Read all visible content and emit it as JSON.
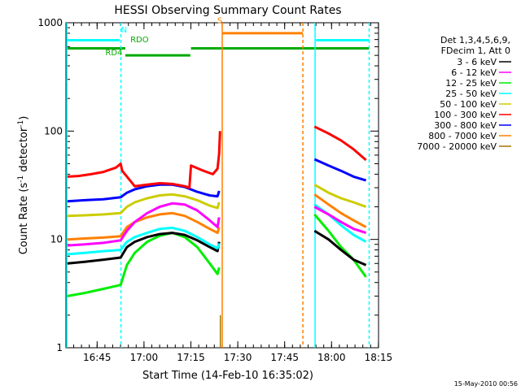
{
  "chart_data": {
    "type": "line",
    "title": "HESSI Observing Summary Count Rates",
    "xlabel": "Start Time (14-Feb-10 16:35:02)",
    "ylabel_base": "Count Rate (s",
    "ylabel_sup1": "-1",
    "ylabel_mid": " detector",
    "ylabel_sup2": "-1",
    "ylabel_end": ")",
    "yscale": "log",
    "ylim": [
      1,
      1000
    ],
    "xlim_minutes": [
      0,
      100
    ],
    "x_unit": "minutes after 16:35:02",
    "yticks": [
      {
        "value": 1,
        "label": "1"
      },
      {
        "value": 10,
        "label": "10"
      },
      {
        "value": 100,
        "label": "100"
      },
      {
        "value": 1000,
        "label": "1000"
      }
    ],
    "xticks": [
      {
        "value": 9.97,
        "label": "16:45"
      },
      {
        "value": 24.97,
        "label": "17:00"
      },
      {
        "value": 39.97,
        "label": "17:15"
      },
      {
        "value": 54.97,
        "label": "17:30"
      },
      {
        "value": 69.97,
        "label": "17:45"
      },
      {
        "value": 84.97,
        "label": "18:00"
      },
      {
        "value": 99.97,
        "label": "18:15"
      }
    ],
    "legend_header": [
      "Det 1,3,4,5,6,9,",
      "FDecim 1, Att 0"
    ],
    "legend_position": "right",
    "series": [
      {
        "name": "3 - 6 keV",
        "color": "#000000",
        "values": [
          [
            0.5,
            6.0
          ],
          [
            6,
            6.2
          ],
          [
            12,
            6.5
          ],
          [
            17.5,
            6.8
          ],
          [
            19.5,
            8.5
          ],
          [
            22,
            9.5
          ],
          [
            26,
            10.5
          ],
          [
            30,
            11.2
          ],
          [
            34,
            11.5
          ],
          [
            38,
            11.0
          ],
          [
            42,
            9.8
          ],
          [
            46,
            8.5
          ],
          [
            48.5,
            7.8
          ],
          [
            49,
            9.5
          ],
          [
            79.5,
            12.0
          ],
          [
            84,
            10.0
          ],
          [
            88,
            8.0
          ],
          [
            92,
            6.5
          ],
          [
            96,
            5.8
          ]
        ]
      },
      {
        "name": "6 - 12 keV",
        "color": "#ff00ff",
        "values": [
          [
            0.5,
            8.8
          ],
          [
            6,
            9.0
          ],
          [
            12,
            9.3
          ],
          [
            17.5,
            9.8
          ],
          [
            19.5,
            12.0
          ],
          [
            22,
            14.5
          ],
          [
            26,
            17.5
          ],
          [
            30,
            20.0
          ],
          [
            34,
            21.5
          ],
          [
            38,
            21.0
          ],
          [
            42,
            18.5
          ],
          [
            46,
            15.0
          ],
          [
            48.5,
            13.0
          ],
          [
            49,
            16.0
          ],
          [
            79.5,
            20.0
          ],
          [
            84,
            17.0
          ],
          [
            88,
            14.5
          ],
          [
            92,
            12.5
          ],
          [
            96,
            11.5
          ]
        ]
      },
      {
        "name": "12 - 25 keV",
        "color": "#00ee00",
        "values": [
          [
            0.5,
            3.0
          ],
          [
            6,
            3.2
          ],
          [
            12,
            3.5
          ],
          [
            17.5,
            3.8
          ],
          [
            19.5,
            5.8
          ],
          [
            22,
            7.5
          ],
          [
            26,
            9.5
          ],
          [
            30,
            10.8
          ],
          [
            34,
            11.5
          ],
          [
            38,
            10.5
          ],
          [
            42,
            8.5
          ],
          [
            46,
            6.0
          ],
          [
            48.5,
            4.8
          ],
          [
            49,
            5.5
          ],
          [
            79.5,
            17.0
          ],
          [
            84,
            12.0
          ],
          [
            88,
            8.5
          ],
          [
            92,
            6.5
          ],
          [
            96,
            4.5
          ]
        ]
      },
      {
        "name": "25 - 50 keV",
        "color": "#00ffff",
        "values": [
          [
            0.5,
            7.3
          ],
          [
            6,
            7.5
          ],
          [
            12,
            7.8
          ],
          [
            17.5,
            8.0
          ],
          [
            19.5,
            9.5
          ],
          [
            22,
            10.5
          ],
          [
            26,
            11.5
          ],
          [
            30,
            12.5
          ],
          [
            34,
            12.8
          ],
          [
            38,
            12.0
          ],
          [
            42,
            10.5
          ],
          [
            46,
            9.0
          ],
          [
            48.5,
            8.3
          ],
          [
            49,
            9.2
          ],
          [
            79.5,
            21.0
          ],
          [
            84,
            17.0
          ],
          [
            88,
            13.5
          ],
          [
            92,
            11.0
          ],
          [
            96,
            9.5
          ]
        ]
      },
      {
        "name": "50 - 100 keV",
        "color": "#cccc00",
        "values": [
          [
            0.5,
            16.5
          ],
          [
            6,
            16.7
          ],
          [
            12,
            17.0
          ],
          [
            17.5,
            17.5
          ],
          [
            19.5,
            20.0
          ],
          [
            22,
            22.0
          ],
          [
            26,
            24.0
          ],
          [
            30,
            25.5
          ],
          [
            34,
            26.0
          ],
          [
            38,
            25.0
          ],
          [
            42,
            23.0
          ],
          [
            46,
            20.5
          ],
          [
            48.5,
            19.5
          ],
          [
            49,
            22.0
          ],
          [
            79.5,
            32.0
          ],
          [
            84,
            27.0
          ],
          [
            88,
            24.0
          ],
          [
            92,
            22.0
          ],
          [
            96,
            20.0
          ]
        ]
      },
      {
        "name": "100 - 300 keV",
        "color": "#ff0000",
        "values": [
          [
            0.5,
            38.0
          ],
          [
            4,
            38.5
          ],
          [
            8,
            40.0
          ],
          [
            12,
            42.0
          ],
          [
            16,
            46.0
          ],
          [
            17.5,
            50.0
          ],
          [
            18,
            43.0
          ],
          [
            22,
            31.0
          ],
          [
            26,
            32.0
          ],
          [
            30,
            33.0
          ],
          [
            34,
            32.5
          ],
          [
            38,
            31.0
          ],
          [
            39.5,
            30.0
          ],
          [
            40,
            48.0
          ],
          [
            44,
            43.0
          ],
          [
            47,
            40.0
          ],
          [
            48.5,
            45.0
          ],
          [
            49,
            62.0
          ],
          [
            49.3,
            100.0
          ],
          [
            79.5,
            110.0
          ],
          [
            84,
            95.0
          ],
          [
            88,
            82.0
          ],
          [
            92,
            68.0
          ],
          [
            96,
            54.0
          ]
        ]
      },
      {
        "name": "300 - 800 keV",
        "color": "#0000ff",
        "values": [
          [
            0.5,
            22.5
          ],
          [
            6,
            23.0
          ],
          [
            12,
            23.5
          ],
          [
            17.5,
            24.5
          ],
          [
            19.5,
            27.0
          ],
          [
            22,
            29.0
          ],
          [
            26,
            31.0
          ],
          [
            30,
            32.0
          ],
          [
            34,
            32.0
          ],
          [
            38,
            30.5
          ],
          [
            42,
            27.5
          ],
          [
            46,
            25.5
          ],
          [
            48.5,
            25.0
          ],
          [
            49,
            28.0
          ],
          [
            79.5,
            55.0
          ],
          [
            84,
            48.0
          ],
          [
            88,
            43.0
          ],
          [
            92,
            38.0
          ],
          [
            96,
            35.0
          ]
        ]
      },
      {
        "name": "800 - 7000 keV",
        "color": "#ff8000",
        "values": [
          [
            0.5,
            10.0
          ],
          [
            6,
            10.2
          ],
          [
            12,
            10.4
          ],
          [
            17.5,
            10.7
          ],
          [
            19.5,
            13.0
          ],
          [
            22,
            14.5
          ],
          [
            26,
            16.0
          ],
          [
            30,
            17.0
          ],
          [
            34,
            17.5
          ],
          [
            38,
            16.5
          ],
          [
            42,
            14.5
          ],
          [
            46,
            12.5
          ],
          [
            48.5,
            11.5
          ],
          [
            49,
            13.0
          ],
          [
            79.5,
            26.0
          ],
          [
            84,
            21.0
          ],
          [
            88,
            17.5
          ],
          [
            92,
            15.0
          ],
          [
            96,
            13.0
          ]
        ]
      },
      {
        "name": "7000 - 20000 keV",
        "color": "#a07800",
        "values": []
      }
    ],
    "annotations": [
      {
        "text": "N",
        "color": "#00ffff",
        "x_minute": 17.6,
        "y": 810
      },
      {
        "text": "RDO",
        "color": "#00aa00",
        "x_minute": 20.6,
        "y": 660
      },
      {
        "text": "RD4",
        "color": "#00aa00",
        "x_minute": 12.6,
        "y": 500
      },
      {
        "text": "S",
        "color": "#ff8000",
        "x_minute": 48.4,
        "y": 990
      }
    ],
    "bars": [
      {
        "name": "night",
        "color": "#00ffff",
        "y": 690,
        "x": [
          [
            0.5,
            17.2
          ],
          [
            80.0,
            97.0
          ]
        ]
      },
      {
        "name": "saa",
        "color": "#ff8000",
        "y": 800,
        "x": [
          [
            50.0,
            75.8
          ]
        ]
      },
      {
        "name": "decimation",
        "color": "#00aa00",
        "y": 580,
        "x": [
          [
            0.5,
            19.0
          ],
          [
            40.0,
            97.0
          ]
        ]
      },
      {
        "name": "rd4",
        "color": "#00aa00",
        "y": 500,
        "x": [
          [
            19.0,
            39.8
          ]
        ]
      }
    ],
    "vlines": [
      {
        "name": "night-start",
        "color": "#00ffff",
        "x_minute": 0.3,
        "style": "solid"
      },
      {
        "name": "night-end",
        "color": "#00ffff",
        "x_minute": 17.6,
        "style": "dashed"
      },
      {
        "name": "saa-start",
        "color": "#ff8000",
        "x_minute": 50.0,
        "style": "solid"
      },
      {
        "name": "saa-end",
        "color": "#ff8000",
        "x_minute": 75.8,
        "style": "dashed"
      },
      {
        "name": "night2-start",
        "color": "#00ffff",
        "x_minute": 79.7,
        "style": "solid"
      },
      {
        "name": "night2-end",
        "color": "#00ffff",
        "x_minute": 97.0,
        "style": "dashed"
      },
      {
        "name": "brown-mark",
        "color": "#a07800",
        "x_minute": 49.4,
        "style": "solid"
      }
    ]
  },
  "footer_date": "15-May-2010 00:56"
}
